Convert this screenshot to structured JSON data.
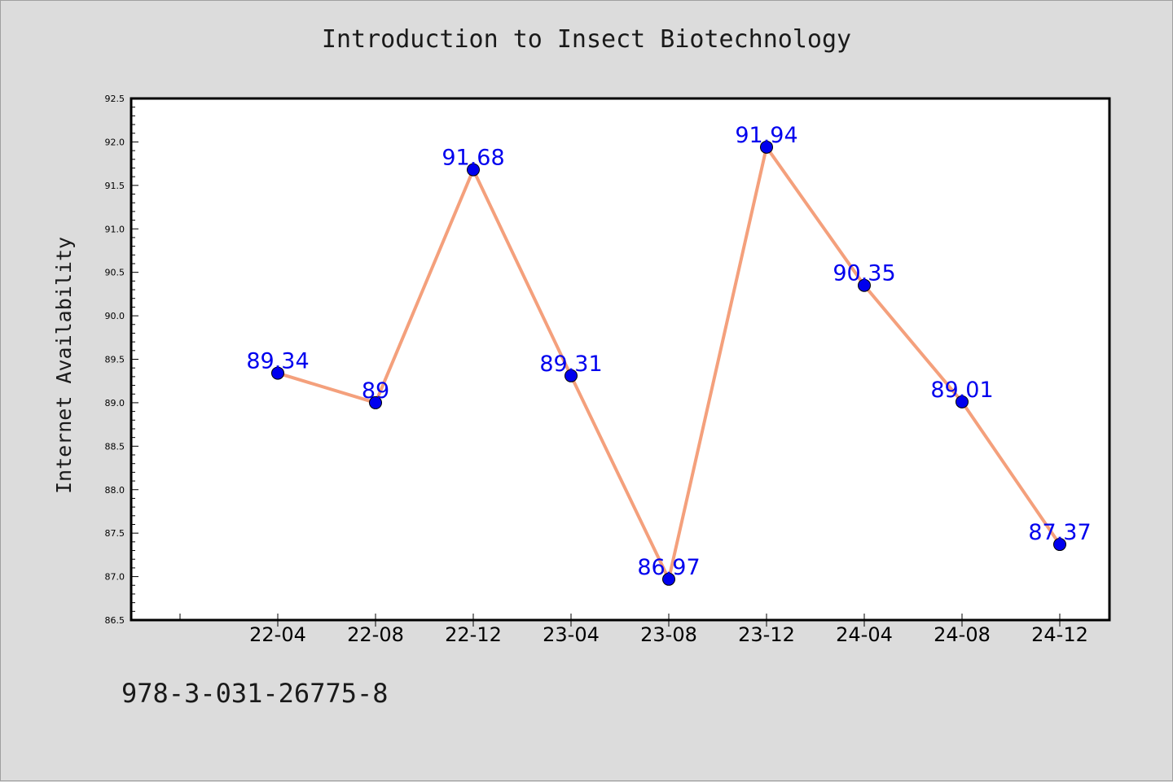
{
  "figure": {
    "background": "#dcdcdc",
    "caption": "978-3-031-26775-8"
  },
  "chart_data": {
    "type": "line",
    "title": "Introduction to Insect Biotechnology",
    "xlabel": "",
    "ylabel": "Internet Availability",
    "categories": [
      "22-04",
      "22-08",
      "22-12",
      "23-04",
      "23-08",
      "23-12",
      "24-04",
      "24-08",
      "24-12"
    ],
    "series": [
      {
        "values": [
          89.34,
          89,
          91.68,
          89.31,
          86.97,
          91.94,
          90.35,
          89.01,
          87.37
        ],
        "data_labels": [
          "89.34",
          "89",
          "91.68",
          "89.31",
          "86.97",
          "91.94",
          "90.35",
          "89.01",
          "87.37"
        ],
        "line_color": "#f4a07c",
        "marker_color": "#0000ee",
        "label_color": "#0000ee"
      }
    ],
    "ylim": [
      86.5,
      92.5
    ],
    "yticks": [
      "86.5",
      "87.0",
      "87.5",
      "88.0",
      "88.5",
      "89.0",
      "89.5",
      "90.0",
      "90.5",
      "91.0",
      "91.5",
      "92.0",
      "92.5"
    ],
    "grid": false,
    "legend": "none",
    "plot_background": "#ffffff"
  }
}
